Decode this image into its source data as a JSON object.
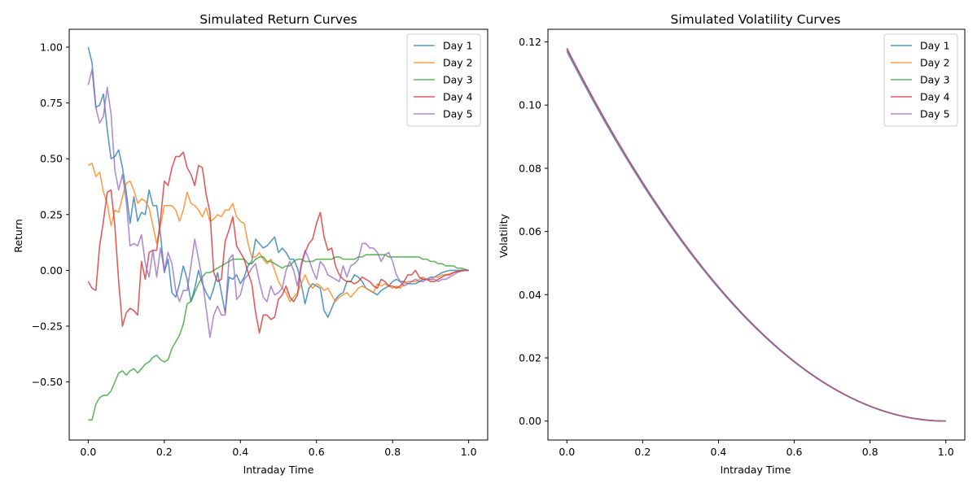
{
  "colors": [
    "#1f77b4",
    "#ff7f0e",
    "#2ca02c",
    "#d62728",
    "#9467bd"
  ],
  "chart_data": [
    {
      "type": "line",
      "title": "Simulated Return Curves",
      "xlabel": "Intraday Time",
      "ylabel": "Return",
      "xlim": [
        -0.05,
        1.05
      ],
      "ylim": [
        -0.76,
        1.08
      ],
      "xticks": [
        0.0,
        0.2,
        0.4,
        0.6,
        0.8,
        1.0
      ],
      "xtick_labels": [
        "0.0",
        "0.2",
        "0.4",
        "0.6",
        "0.8",
        "1.0"
      ],
      "yticks": [
        -0.5,
        -0.25,
        0.0,
        0.25,
        0.5,
        0.75,
        1.0
      ],
      "ytick_labels": [
        "−0.50",
        "−0.25",
        "0.00",
        "0.25",
        "0.50",
        "0.75",
        "1.00"
      ],
      "legend_position": "top-right",
      "grid": false,
      "x_step": 0.01,
      "series": [
        {
          "name": "Day 1",
          "values": [
            1.0,
            0.93,
            0.73,
            0.74,
            0.79,
            0.63,
            0.5,
            0.51,
            0.54,
            0.46,
            0.35,
            0.21,
            0.33,
            0.22,
            0.26,
            0.25,
            0.36,
            0.29,
            0.29,
            0.16,
            -0.01,
            0.05,
            -0.1,
            -0.12,
            -0.06,
            0.02,
            -0.04,
            -0.14,
            -0.08,
            0.0,
            -0.06,
            -0.1,
            -0.13,
            -0.08,
            -0.01,
            -0.1,
            -0.19,
            -0.03,
            -0.04,
            -0.02,
            -0.06,
            -0.03,
            0.02,
            0.04,
            0.14,
            0.12,
            0.1,
            0.11,
            0.13,
            0.15,
            0.08,
            0.1,
            0.08,
            0.05,
            0.05,
            0.01,
            -0.06,
            -0.15,
            -0.08,
            -0.06,
            -0.07,
            -0.08,
            -0.18,
            -0.21,
            -0.17,
            -0.13,
            -0.11,
            -0.1,
            -0.05,
            -0.05,
            -0.02,
            -0.03,
            -0.05,
            -0.08,
            -0.09,
            -0.1,
            -0.11,
            -0.09,
            -0.08,
            -0.07,
            -0.05,
            -0.04,
            -0.05,
            -0.05,
            -0.06,
            -0.06,
            -0.06,
            -0.05,
            -0.04,
            -0.04,
            -0.03,
            -0.03,
            -0.02,
            -0.01,
            -0.005,
            0.0,
            0.0,
            0.0,
            0.0,
            0.0,
            0.0
          ]
        },
        {
          "name": "Day 2",
          "values": [
            0.47,
            0.48,
            0.42,
            0.44,
            0.35,
            0.3,
            0.2,
            0.27,
            0.26,
            0.33,
            0.39,
            0.4,
            0.36,
            0.3,
            0.32,
            0.31,
            0.28,
            0.2,
            0.12,
            0.2,
            0.29,
            0.29,
            0.29,
            0.27,
            0.22,
            0.27,
            0.35,
            0.3,
            0.29,
            0.27,
            0.24,
            0.28,
            0.22,
            0.23,
            0.25,
            0.24,
            0.27,
            0.27,
            0.3,
            0.24,
            0.22,
            0.21,
            0.12,
            0.06,
            0.06,
            0.08,
            0.05,
            0.03,
            0.05,
            0.0,
            -0.05,
            -0.08,
            -0.1,
            -0.14,
            -0.12,
            -0.1,
            -0.06,
            -0.02,
            -0.06,
            -0.08,
            -0.06,
            -0.07,
            -0.09,
            -0.08,
            -0.11,
            -0.14,
            -0.12,
            -0.11,
            -0.1,
            -0.12,
            -0.1,
            -0.08,
            -0.07,
            -0.08,
            -0.09,
            -0.1,
            -0.06,
            -0.07,
            -0.06,
            -0.07,
            -0.08,
            -0.07,
            -0.08,
            -0.06,
            -0.05,
            -0.05,
            -0.05,
            -0.04,
            -0.03,
            -0.04,
            -0.04,
            -0.03,
            -0.03,
            -0.02,
            -0.02,
            -0.015,
            -0.01,
            -0.005,
            0.0,
            0.0,
            0.0
          ]
        },
        {
          "name": "Day 3",
          "values": [
            -0.67,
            -0.67,
            -0.6,
            -0.57,
            -0.56,
            -0.56,
            -0.54,
            -0.5,
            -0.46,
            -0.45,
            -0.47,
            -0.45,
            -0.44,
            -0.46,
            -0.44,
            -0.42,
            -0.41,
            -0.39,
            -0.38,
            -0.4,
            -0.41,
            -0.4,
            -0.35,
            -0.32,
            -0.29,
            -0.24,
            -0.15,
            -0.14,
            -0.1,
            -0.06,
            -0.03,
            -0.01,
            -0.01,
            0.0,
            0.01,
            0.02,
            0.03,
            0.04,
            0.05,
            0.05,
            0.05,
            0.05,
            0.03,
            0.03,
            0.05,
            0.06,
            0.06,
            0.04,
            0.04,
            0.03,
            0.02,
            0.01,
            0.02,
            0.02,
            0.04,
            0.05,
            0.05,
            0.04,
            0.04,
            0.04,
            0.05,
            0.05,
            0.05,
            0.05,
            0.05,
            0.06,
            0.06,
            0.05,
            0.05,
            0.05,
            0.05,
            0.06,
            0.06,
            0.07,
            0.07,
            0.07,
            0.07,
            0.07,
            0.07,
            0.06,
            0.06,
            0.06,
            0.06,
            0.06,
            0.06,
            0.06,
            0.06,
            0.06,
            0.05,
            0.05,
            0.04,
            0.04,
            0.03,
            0.03,
            0.02,
            0.02,
            0.02,
            0.01,
            0.01,
            0.005,
            0.0
          ]
        },
        {
          "name": "Day 4",
          "values": [
            -0.05,
            -0.08,
            -0.09,
            0.11,
            0.22,
            0.35,
            0.36,
            0.2,
            -0.05,
            -0.25,
            -0.19,
            -0.17,
            -0.18,
            -0.2,
            0.04,
            -0.04,
            0.08,
            0.09,
            0.09,
            0.23,
            0.4,
            0.38,
            0.46,
            0.51,
            0.51,
            0.53,
            0.46,
            0.43,
            0.38,
            0.47,
            0.46,
            0.34,
            0.26,
            -0.01,
            -0.05,
            -0.04,
            0.13,
            0.18,
            0.24,
            0.11,
            0.08,
            0.05,
            -0.01,
            -0.06,
            -0.19,
            -0.28,
            -0.2,
            -0.2,
            -0.22,
            -0.21,
            -0.13,
            -0.11,
            -0.07,
            -0.12,
            -0.14,
            -0.11,
            0.02,
            0.08,
            0.12,
            0.14,
            0.21,
            0.26,
            0.15,
            0.09,
            0.1,
            0.02,
            -0.02,
            -0.04,
            -0.05,
            -0.05,
            -0.06,
            -0.05,
            -0.03,
            -0.04,
            -0.05,
            -0.07,
            -0.08,
            -0.04,
            -0.05,
            -0.07,
            -0.07,
            -0.08,
            -0.07,
            -0.05,
            -0.02,
            -0.02,
            0.0,
            -0.03,
            -0.04,
            -0.04,
            -0.05,
            -0.05,
            -0.04,
            -0.03,
            -0.02,
            -0.02,
            -0.01,
            -0.005,
            0.0,
            0.0,
            0.0
          ]
        },
        {
          "name": "Day 5",
          "values": [
            0.83,
            0.9,
            0.73,
            0.66,
            0.69,
            0.82,
            0.7,
            0.45,
            0.36,
            0.43,
            0.31,
            0.11,
            0.12,
            0.11,
            0.16,
            0.03,
            -0.03,
            0.09,
            -0.03,
            0.1,
            0.0,
            0.08,
            0.03,
            -0.09,
            -0.14,
            -0.09,
            -0.09,
            0.02,
            0.14,
            0.05,
            -0.04,
            -0.17,
            -0.3,
            -0.2,
            -0.16,
            -0.2,
            -0.2,
            0.05,
            0.07,
            -0.13,
            -0.11,
            -0.04,
            -0.02,
            0.01,
            0.03,
            -0.05,
            -0.12,
            -0.14,
            -0.07,
            -0.11,
            -0.1,
            -0.08,
            0.0,
            0.04,
            0.0,
            -0.07,
            0.03,
            0.09,
            0.05,
            0.0,
            -0.04,
            0.04,
            0.02,
            -0.02,
            -0.03,
            -0.04,
            -0.05,
            0.02,
            -0.03,
            0.02,
            0.03,
            0.05,
            0.12,
            0.12,
            0.1,
            0.1,
            0.08,
            0.04,
            0.07,
            0.08,
            0.04,
            -0.02,
            -0.05,
            -0.07,
            -0.06,
            -0.05,
            -0.04,
            -0.05,
            -0.05,
            -0.04,
            -0.04,
            -0.04,
            -0.05,
            -0.04,
            -0.04,
            -0.03,
            -0.02,
            -0.01,
            -0.005,
            0.0,
            0.0
          ]
        }
      ]
    },
    {
      "type": "line",
      "title": "Simulated Volatility Curves",
      "xlabel": "Intraday Time",
      "ylabel": "Volatility",
      "xlim": [
        -0.05,
        1.05
      ],
      "ylim": [
        -0.006,
        0.124
      ],
      "xticks": [
        0.0,
        0.2,
        0.4,
        0.6,
        0.8,
        1.0
      ],
      "xtick_labels": [
        "0.0",
        "0.2",
        "0.4",
        "0.6",
        "0.8",
        "1.0"
      ],
      "yticks": [
        0.0,
        0.02,
        0.04,
        0.06,
        0.08,
        0.1,
        0.12
      ],
      "ytick_labels": [
        "0.00",
        "0.02",
        "0.04",
        "0.06",
        "0.08",
        "0.10",
        "0.12"
      ],
      "legend_position": "top-right",
      "grid": false,
      "curve": "quadratic decay: v(t) = v0 * (1 - t)^2",
      "series": [
        {
          "name": "Day 1",
          "v0": 0.117
        },
        {
          "name": "Day 2",
          "v0": 0.1175
        },
        {
          "name": "Day 3",
          "v0": 0.1178
        },
        {
          "name": "Day 4",
          "v0": 0.118
        },
        {
          "name": "Day 5",
          "v0": 0.1177
        }
      ]
    }
  ]
}
